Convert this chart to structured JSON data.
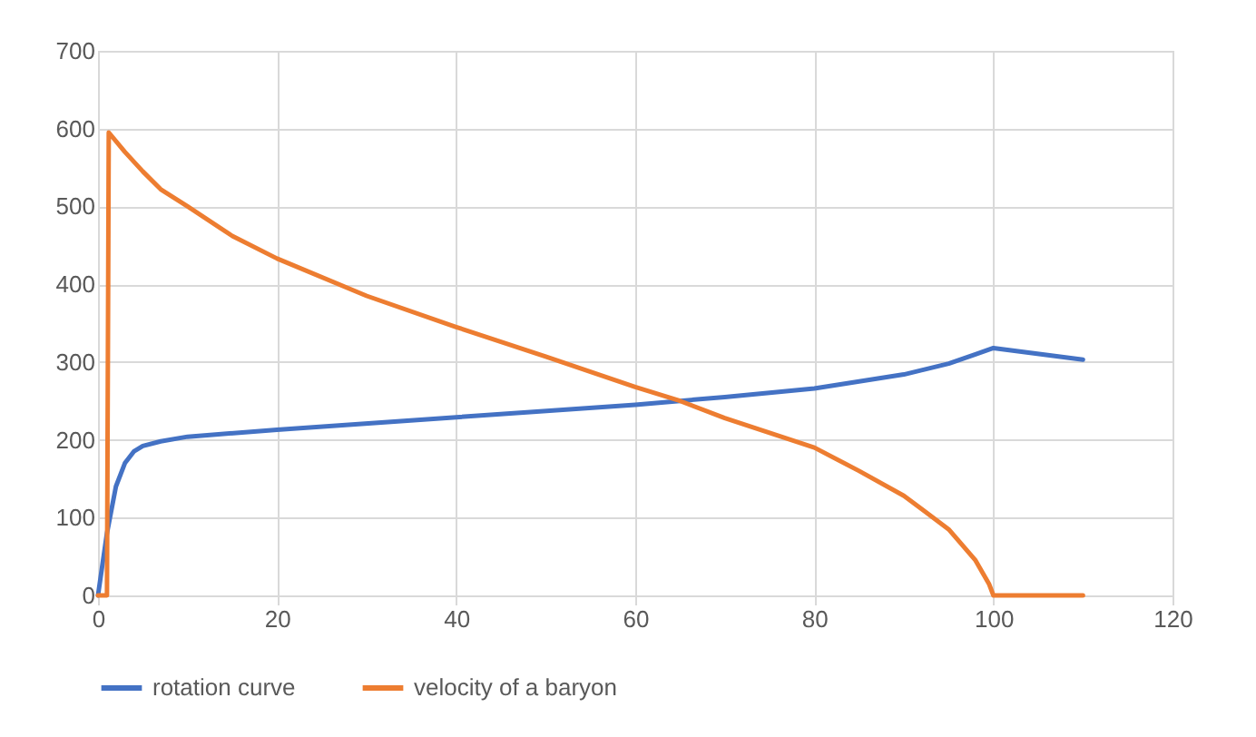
{
  "chart_data": {
    "type": "line",
    "series": [
      {
        "name": "rotation curve",
        "color": "#4472c4",
        "x": [
          0,
          1,
          2,
          3,
          4,
          5,
          7,
          10,
          20,
          40,
          60,
          70,
          80,
          90,
          95,
          98,
          100,
          110
        ],
        "values": [
          0,
          80,
          140,
          170,
          185,
          192,
          198,
          204,
          213,
          229,
          245,
          255,
          266,
          284,
          298,
          310,
          318,
          303
        ]
      },
      {
        "name": "velocity of a baryon",
        "color": "#ed7d31",
        "x": [
          0,
          1,
          1.2,
          3,
          5,
          7,
          10,
          15,
          20,
          30,
          40,
          50,
          60,
          65,
          70,
          80,
          85,
          90,
          95,
          98,
          99.5,
          100,
          110
        ],
        "values": [
          0,
          0,
          595,
          570,
          545,
          522,
          500,
          462,
          433,
          385,
          345,
          307,
          268,
          250,
          228,
          190,
          160,
          128,
          85,
          45,
          15,
          0,
          0
        ]
      }
    ],
    "xlim": [
      0,
      120
    ],
    "xticks": [
      0,
      20,
      40,
      60,
      80,
      100,
      120
    ],
    "ylim": [
      0,
      700
    ],
    "yticks": [
      0,
      100,
      200,
      300,
      400,
      500,
      600,
      700
    ],
    "grid": true,
    "legend": "bottom",
    "marker": "none",
    "line_style": "solid"
  }
}
